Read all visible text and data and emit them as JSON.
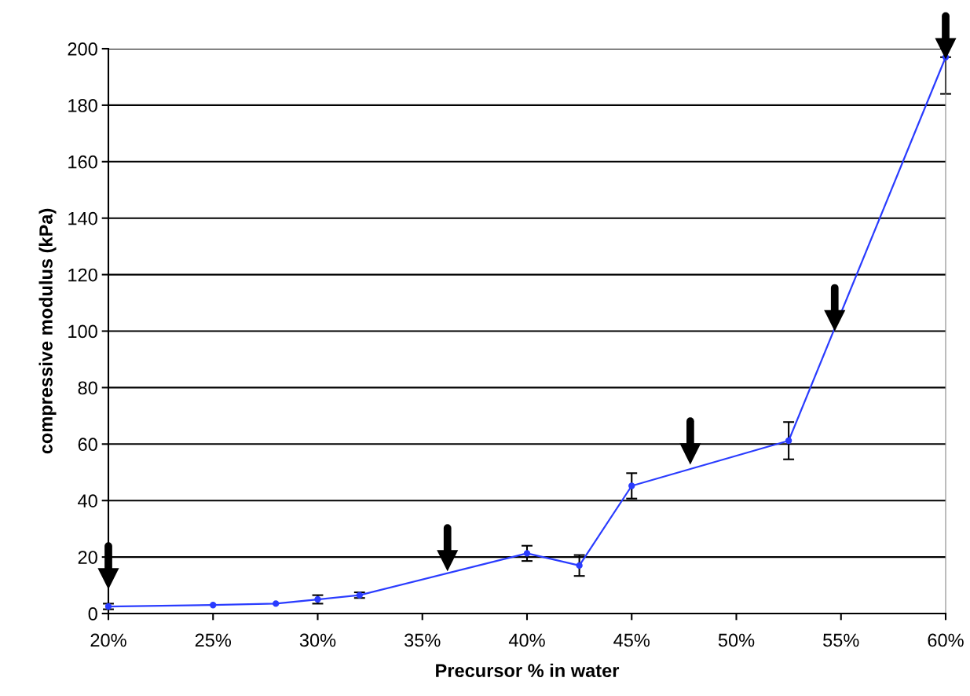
{
  "chart_data": {
    "type": "line",
    "xlabel": "Precursor % in water",
    "ylabel": "compressive modulus (kPa)",
    "x": [
      20,
      25,
      28,
      30,
      32,
      40,
      42.5,
      45,
      52.5,
      60
    ],
    "series": [
      {
        "color": "#2a3cff",
        "values": [
          2.5,
          3,
          3.5,
          5,
          6.5,
          21.3,
          17,
          45.2,
          61.2,
          197
        ],
        "errors": [
          1,
          null,
          null,
          1.5,
          1,
          2.7,
          3.7,
          4.5,
          6.6,
          [
            184,
            197
          ]
        ]
      },
      {
        "type": "scatter",
        "marker": "triangle",
        "color": "#000000",
        "x": [
          20,
          36.2,
          47.8,
          54.7,
          60
        ],
        "values": [
          12.3,
          18.7,
          56.5,
          103.7,
          200
        ]
      }
    ],
    "marker": "circle",
    "line_style": "solid",
    "xlim": [
      20,
      60
    ],
    "xticks": [
      {
        "value": 20,
        "label": "20%"
      },
      {
        "value": 25,
        "label": "25%"
      },
      {
        "value": 30,
        "label": "30%"
      },
      {
        "value": 35,
        "label": "35%"
      },
      {
        "value": 40,
        "label": "40%"
      },
      {
        "value": 45,
        "label": "45%"
      },
      {
        "value": 50,
        "label": "50%"
      },
      {
        "value": 55,
        "label": "55%"
      },
      {
        "value": 60,
        "label": "60%"
      }
    ],
    "ylim": [
      0,
      200
    ],
    "yticks": [
      0,
      20,
      40,
      60,
      80,
      100,
      120,
      140,
      160,
      180,
      200
    ],
    "grid": "y"
  }
}
